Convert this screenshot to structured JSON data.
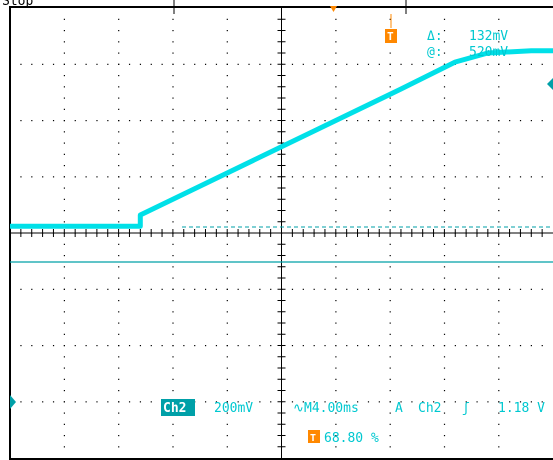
{
  "status": {
    "run_state": "Stop"
  },
  "cursor_readout": {
    "delta_symbol": "Δ:",
    "delta_value": "132mV",
    "at_symbol": "@:",
    "at_value": "520mV"
  },
  "bottom_bar": {
    "channel": "Ch2",
    "volts_per_div": "200mV",
    "timebase": "M4.00ms",
    "trigger_mode": "A",
    "trigger_source": "Ch2",
    "trigger_slope_symbol": "ʃ",
    "trigger_level": "1.18 V",
    "trigger_position": "68.80 %",
    "timebase_prefix_symbol": "∿"
  },
  "colors": {
    "trace": "#00e0e8",
    "trigger_marker": "#ff8800",
    "grid": "#000000",
    "reference_line": "#00a0a8"
  },
  "chart_data": {
    "type": "line",
    "title": "",
    "xlabel": "",
    "ylabel": "",
    "series": [
      {
        "x": [
          -24.0,
          -14.4,
          -14.4,
          -9.6,
          -4.8,
          0.0,
          4.8,
          8.8,
          11.2,
          14.4,
          16.0
        ],
        "y": [
          0.03,
          0.03,
          0.08,
          0.22,
          0.36,
          0.5,
          0.64,
          0.76,
          0.8,
          0.81,
          0.81
        ]
      }
    ],
    "xlim": [
      -24.0,
      16.0
    ],
    "ylim": [
      -1.0,
      1.0
    ],
    "grid": true
  }
}
